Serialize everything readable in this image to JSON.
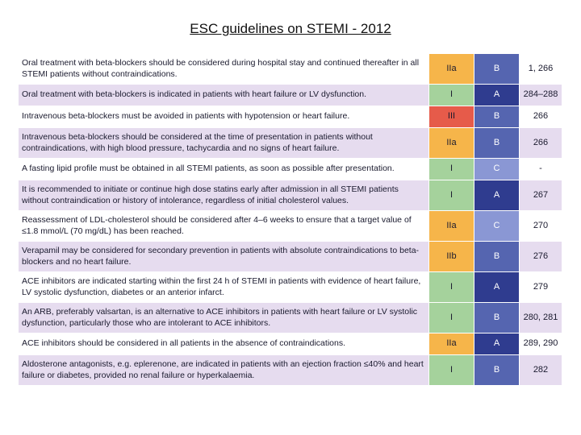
{
  "page_title": "ESC guidelines on STEMI - 2012",
  "colors": {
    "class_I": "#a5d29c",
    "class_IIa": "#f6b54a",
    "class_IIb": "#f6b54a",
    "class_III": "#e65b4a",
    "level_A": "#2f3c8f",
    "level_B": "#5565b0",
    "level_C": "#8a97d4",
    "row_lavender": "#e6dcef",
    "row_white": "#ffffff"
  },
  "rows": [
    {
      "text": "Oral treatment with beta-blockers should be considered during hospital stay and continued thereafter in all STEMI patients without contraindications.",
      "class": "IIa",
      "level": "B",
      "ref": "1, 266",
      "shade": "white"
    },
    {
      "text": "Oral treatment with beta-blockers is indicated in patients with heart failure or LV dysfunction.",
      "class": "I",
      "level": "A",
      "ref": "284–288",
      "shade": "lav"
    },
    {
      "text": "Intravenous beta-blockers must be avoided in patients with hypotension or heart failure.",
      "class": "III",
      "level": "B",
      "ref": "266",
      "shade": "white"
    },
    {
      "text": "Intravenous beta-blockers should be considered at the time of presentation in patients without contraindications, with high blood pressure, tachycardia and no signs of heart failure.",
      "class": "IIa",
      "level": "B",
      "ref": "266",
      "shade": "lav"
    },
    {
      "text": "A fasting lipid profile must be obtained in all STEMI patients, as soon as possible after presentation.",
      "class": "I",
      "level": "C",
      "ref": "-",
      "shade": "white"
    },
    {
      "text": "It is recommended to initiate or continue high dose statins early after admission in all STEMI patients without contraindication or history of intolerance, regardless of initial cholesterol values.",
      "class": "I",
      "level": "A",
      "ref": "267",
      "shade": "lav"
    },
    {
      "text": "Reassessment of LDL-cholesterol should be considered after 4–6 weeks to ensure that a target value of ≤1.8 mmol/L (70 mg/dL) has been reached.",
      "class": "IIa",
      "level": "C",
      "ref": "270",
      "shade": "white"
    },
    {
      "text": "Verapamil may be considered for secondary prevention in patients with absolute contraindications to beta-blockers and no heart failure.",
      "class": "IIb",
      "level": "B",
      "ref": "276",
      "shade": "lav"
    },
    {
      "text": "ACE inhibitors are indicated starting within the first 24 h of STEMI in patients with evidence of heart failure, LV systolic dysfunction, diabetes or an anterior infarct.",
      "class": "I",
      "level": "A",
      "ref": "279",
      "shade": "white"
    },
    {
      "text": "An ARB, preferably valsartan, is an alternative to ACE inhibitors in patients with heart failure or LV systolic dysfunction, particularly those who are intolerant to ACE inhibitors.",
      "class": "I",
      "level": "B",
      "ref": "280, 281",
      "shade": "lav"
    },
    {
      "text": "ACE inhibitors should be considered in all patients in the absence of contraindications.",
      "class": "IIa",
      "level": "A",
      "ref": "289, 290",
      "shade": "white"
    },
    {
      "text": "Aldosterone antagonists, e.g. eplerenone, are indicated in patients with an ejection fraction ≤40% and heart failure or diabetes, provided no renal failure or hyperkalaemia.",
      "class": "I",
      "level": "B",
      "ref": "282",
      "shade": "lav"
    }
  ]
}
